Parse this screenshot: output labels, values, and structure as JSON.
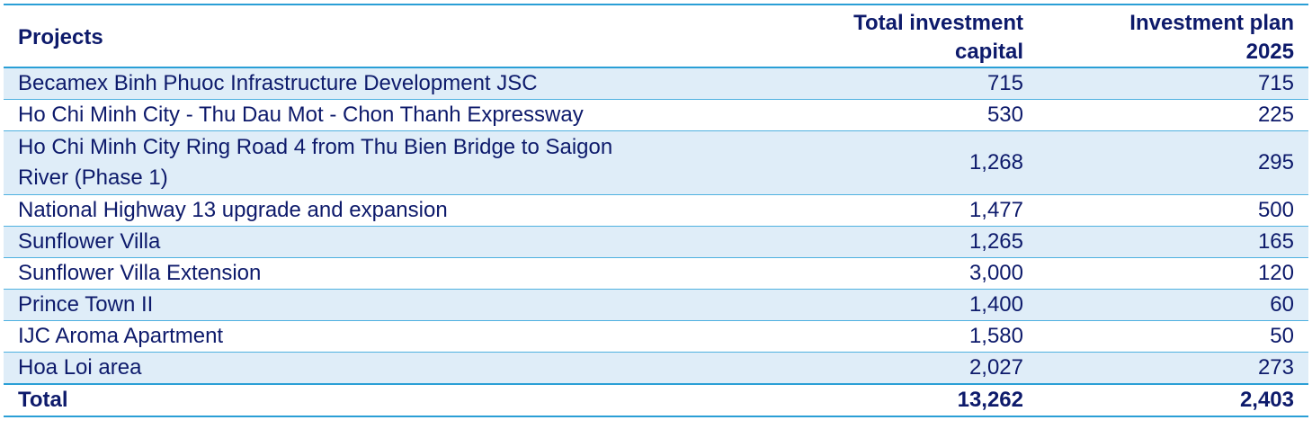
{
  "table": {
    "headers": {
      "projects": "Projects",
      "total_investment_line1": "Total investment",
      "total_investment_line2": "capital",
      "investment_plan_line1": "Investment plan",
      "investment_plan_line2": "2025"
    },
    "rows": [
      {
        "project": "Becamex Binh Phuoc Infrastructure Development JSC",
        "total": "715",
        "plan": "715"
      },
      {
        "project": "Ho Chi Minh City - Thu Dau Mot - Chon Thanh Expressway",
        "total": "530",
        "plan": "225"
      },
      {
        "project_line1": "Ho Chi Minh City Ring Road 4 from Thu Bien Bridge to Saigon",
        "project_line2": "River (Phase 1)",
        "total": "1,268",
        "plan": "295"
      },
      {
        "project": "National Highway 13 upgrade and expansion",
        "total": "1,477",
        "plan": "500"
      },
      {
        "project": "Sunflower Villa",
        "total": "1,265",
        "plan": "165"
      },
      {
        "project": "Sunflower Villa Extension",
        "total": "3,000",
        "plan": "120"
      },
      {
        "project": "Prince Town II",
        "total": "1,400",
        "plan": "60"
      },
      {
        "project": "IJC Aroma Apartment",
        "total": "1,580",
        "plan": "50"
      },
      {
        "project": "Hoa Loi area",
        "total": "2,027",
        "plan": "273"
      }
    ],
    "total_row": {
      "label": "Total",
      "total": "13,262",
      "plan": "2,403"
    }
  },
  "colors": {
    "text": "#0d1a6b",
    "row_shade": "#dfedf8",
    "rule": "#2a9fd6"
  }
}
